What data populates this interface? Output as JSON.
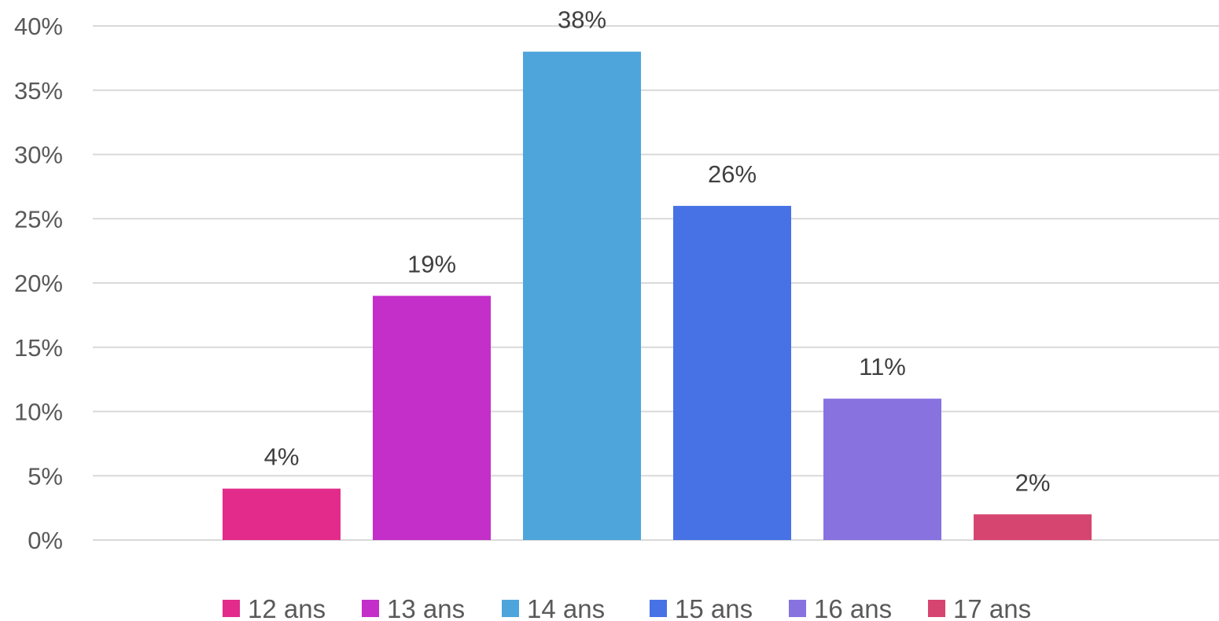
{
  "chart_data": {
    "type": "bar",
    "categories": [
      "12 ans",
      "13 ans",
      "14 ans",
      "15 ans",
      "16 ans",
      "17 ans"
    ],
    "values": [
      4,
      19,
      38,
      26,
      11,
      2
    ],
    "value_labels": [
      "4%",
      "19%",
      "38%",
      "26%",
      "11%",
      "2%"
    ],
    "colors": [
      "#e32b8b",
      "#c42ec9",
      "#4da5db",
      "#4672e6",
      "#8872e0",
      "#d6456f"
    ],
    "y_ticks": [
      0,
      5,
      10,
      15,
      20,
      25,
      30,
      35,
      40
    ],
    "y_tick_labels": [
      "0%",
      "5%",
      "10%",
      "15%",
      "20%",
      "25%",
      "30%",
      "35%",
      "40%"
    ],
    "ylim": [
      0,
      40
    ],
    "grid": true,
    "legend_position": "bottom",
    "title": "",
    "xlabel": "",
    "ylabel": ""
  }
}
